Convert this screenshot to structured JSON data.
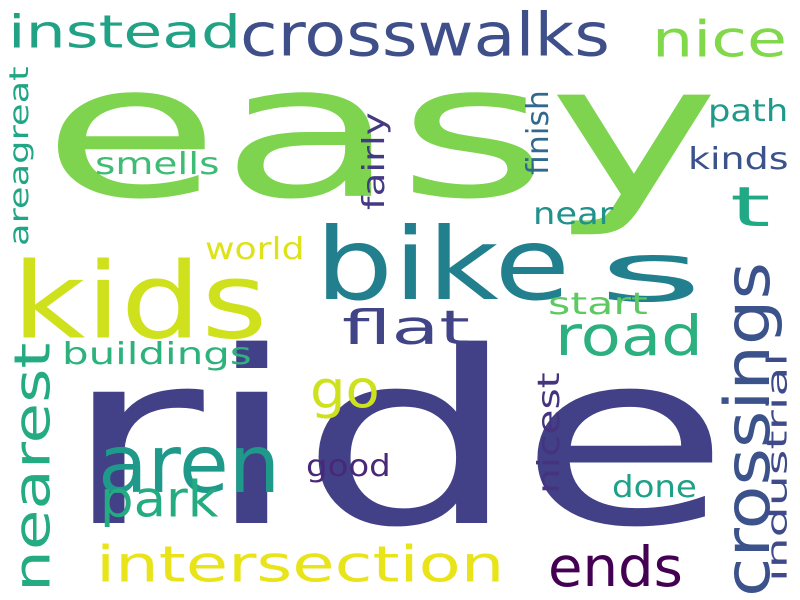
{
  "word_cloud": {
    "words": [
      {
        "text": "easy",
        "color": "#7ed44e",
        "orientation": "horizontal"
      },
      {
        "text": "ride",
        "color": "#424187",
        "orientation": "horizontal"
      },
      {
        "text": "kids",
        "color": "#cfe11c",
        "orientation": "horizontal"
      },
      {
        "text": "bike",
        "color": "#227f8e",
        "orientation": "horizontal"
      },
      {
        "text": "s",
        "color": "#227f8e",
        "orientation": "horizontal"
      },
      {
        "text": "aren",
        "color": "#1f9a8a",
        "orientation": "horizontal"
      },
      {
        "text": "crosswalks",
        "color": "#3f4f8a",
        "orientation": "horizontal"
      },
      {
        "text": "instead",
        "color": "#21a285",
        "orientation": "horizontal"
      },
      {
        "text": "nice",
        "color": "#80d84a",
        "orientation": "horizontal"
      },
      {
        "text": "t",
        "color": "#21a885",
        "orientation": "horizontal"
      },
      {
        "text": "road",
        "color": "#2cb07f",
        "orientation": "horizontal"
      },
      {
        "text": "flat",
        "color": "#414487",
        "orientation": "horizontal"
      },
      {
        "text": "go",
        "color": "#cde11d",
        "orientation": "horizontal"
      },
      {
        "text": "park",
        "color": "#25ab82",
        "orientation": "horizontal"
      },
      {
        "text": "intersection",
        "color": "#e8e419",
        "orientation": "horizontal"
      },
      {
        "text": "ends",
        "color": "#440154",
        "orientation": "horizontal"
      },
      {
        "text": "crossings",
        "color": "#3b528b",
        "orientation": "vertical"
      },
      {
        "text": "nearest",
        "color": "#25ab82",
        "orientation": "vertical"
      },
      {
        "text": "buildings",
        "color": "#2db27d",
        "orientation": "horizontal"
      },
      {
        "text": "world",
        "color": "#dde318",
        "orientation": "horizontal"
      },
      {
        "text": "start",
        "color": "#5ec962",
        "orientation": "horizontal"
      },
      {
        "text": "path",
        "color": "#1f9a8a",
        "orientation": "horizontal"
      },
      {
        "text": "kinds",
        "color": "#3b528b",
        "orientation": "horizontal"
      },
      {
        "text": "near",
        "color": "#21918c",
        "orientation": "horizontal"
      },
      {
        "text": "smells",
        "color": "#3dbc74",
        "orientation": "horizontal"
      },
      {
        "text": "good",
        "color": "#482878",
        "orientation": "horizontal"
      },
      {
        "text": "done",
        "color": "#1fa088",
        "orientation": "horizontal"
      },
      {
        "text": "finish",
        "color": "#31688e",
        "orientation": "vertical"
      },
      {
        "text": "fairly",
        "color": "#443983",
        "orientation": "vertical"
      },
      {
        "text": "areagreat",
        "color": "#21a685",
        "orientation": "vertical"
      },
      {
        "text": "nicest",
        "color": "#46327e",
        "orientation": "vertical"
      },
      {
        "text": "industrial",
        "color": "#3e4a89",
        "orientation": "vertical"
      }
    ]
  }
}
